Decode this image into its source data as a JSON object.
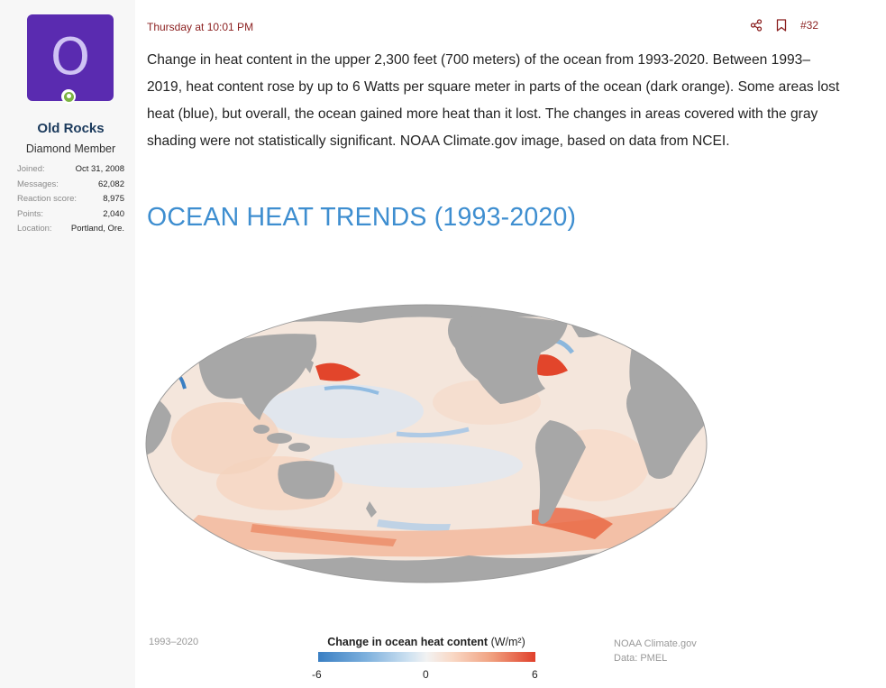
{
  "user": {
    "avatar_letter": "O",
    "name": "Old Rocks",
    "title": "Diamond Member",
    "stats": [
      {
        "label": "Joined:",
        "value": "Oct 31, 2008"
      },
      {
        "label": "Messages:",
        "value": "62,082"
      },
      {
        "label": "Reaction score:",
        "value": "8,975"
      },
      {
        "label": "Points:",
        "value": "2,040"
      },
      {
        "label": "Location:",
        "value": "Portland, Ore."
      }
    ]
  },
  "post": {
    "timestamp": "Thursday at 10:01 PM",
    "number": "#32",
    "share_icon": "share-icon",
    "bookmark_icon": "bookmark-icon",
    "body": "Change in heat content in the upper 2,300 feet (700 meters) of the ocean from 1993-2020. Between 1993–2019, heat content rose by up to 6 Watts per square meter in parts of the ocean (dark orange). Some areas lost heat (blue), but overall, the ocean gained more heat than it lost. The changes in areas covered with the gray shading were not statistically significant. NOAA Climate.gov image, based on data from NCEI."
  },
  "image": {
    "title": "OCEAN HEAT TRENDS (1993-2020)",
    "period": "1993–2020",
    "legend_title": "Change in ocean heat content",
    "legend_unit": "(W/m²)",
    "legend_min": "-6",
    "legend_mid": "0",
    "legend_max": "6",
    "credit": "NOAA Climate.gov",
    "data_source": "Data: PMEL"
  },
  "colors": {
    "accent": "#8b1f1f",
    "title_blue": "#3e8ed0",
    "avatar_bg": "#5a2bb0",
    "warming": "#e0402b",
    "cooling": "#3a7fc3",
    "land": "#a7a7a7"
  }
}
